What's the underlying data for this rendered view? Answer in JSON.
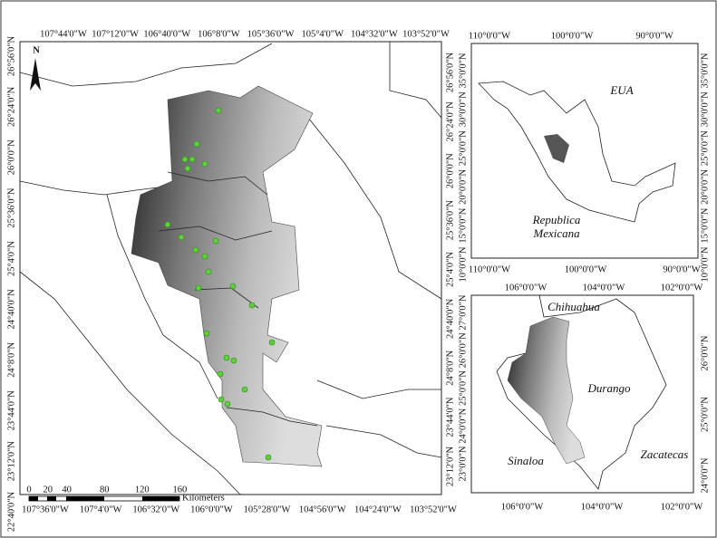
{
  "main": {
    "top": [
      "107°44'0\"W",
      "107°12'0\"W",
      "106°40'0\"W",
      "106°8'0\"W",
      "105°36'0\"W",
      "105°4'0\"W",
      "104°32'0\"W",
      "103°52'0\"W"
    ],
    "bottom": [
      "107°36'0\"W",
      "107°4'0\"W",
      "106°32'0\"W",
      "106°0'0\"W",
      "105°28'0\"W",
      "104°56'0\"W",
      "104°24'0\"W",
      "103°52'0\"W"
    ],
    "left": [
      "26°56'0\"N",
      "26°24'0\"N",
      "26°0'0\"N",
      "25°36'0\"N",
      "25°4'0\"N",
      "24°40'0\"N",
      "24°8'0\"N",
      "23°44'0\"N",
      "23°12'0\"N",
      "22°40'0\"N"
    ],
    "right": [
      "26°56'0\"N",
      "26°24'0\"N",
      "26°0'0\"N",
      "25°36'0\"N",
      "25°4'0\"N",
      "24°40'0\"N",
      "24°8'0\"N",
      "23°44'0\"N",
      "23°12'0\"N"
    ],
    "north": "N",
    "scale": {
      "ticks": [
        0,
        20,
        40,
        80,
        120,
        160
      ],
      "unit": "Kilometers"
    }
  },
  "inset_mexico": {
    "top": [
      "110°0'0\"W",
      "100°0'0\"W",
      "90°0'0\"W"
    ],
    "bottom": [
      "110°0'0\"W",
      "100°0'0\"W",
      "90°0'0\"W"
    ],
    "left": [
      "35°0'0\"N",
      "30°0'0\"N",
      "25°0'0\"N",
      "20°0'0\"N",
      "15°0'0\"N",
      "10°0'0\"N"
    ],
    "right": [
      "35°0'0\"N",
      "30°0'0\"N",
      "25°0'0\"N",
      "20°0'0\"N",
      "15°0'0\"N",
      "10°0'0\"N"
    ],
    "labels": [
      "EUA",
      "Republica",
      "Mexicana"
    ]
  },
  "inset_states": {
    "top": [
      "106°0'0\"W",
      "104°0'0\"W",
      "102°0'0\"W"
    ],
    "bottom": [
      "106°0'0\"W",
      "104°0'0\"W",
      "102°0'0\"W"
    ],
    "left": [
      "27°0'0\"N",
      "26°0'0\"N",
      "25°0'0\"N",
      "24°0'0\"N",
      "23°0'0\"N"
    ],
    "right": [
      "26°0'0\"N",
      "25°0'0\"N",
      "24°0'0\"N"
    ],
    "labels": [
      "Chihuahua",
      "Durango",
      "Zacatecas",
      "Sinaloa"
    ]
  }
}
